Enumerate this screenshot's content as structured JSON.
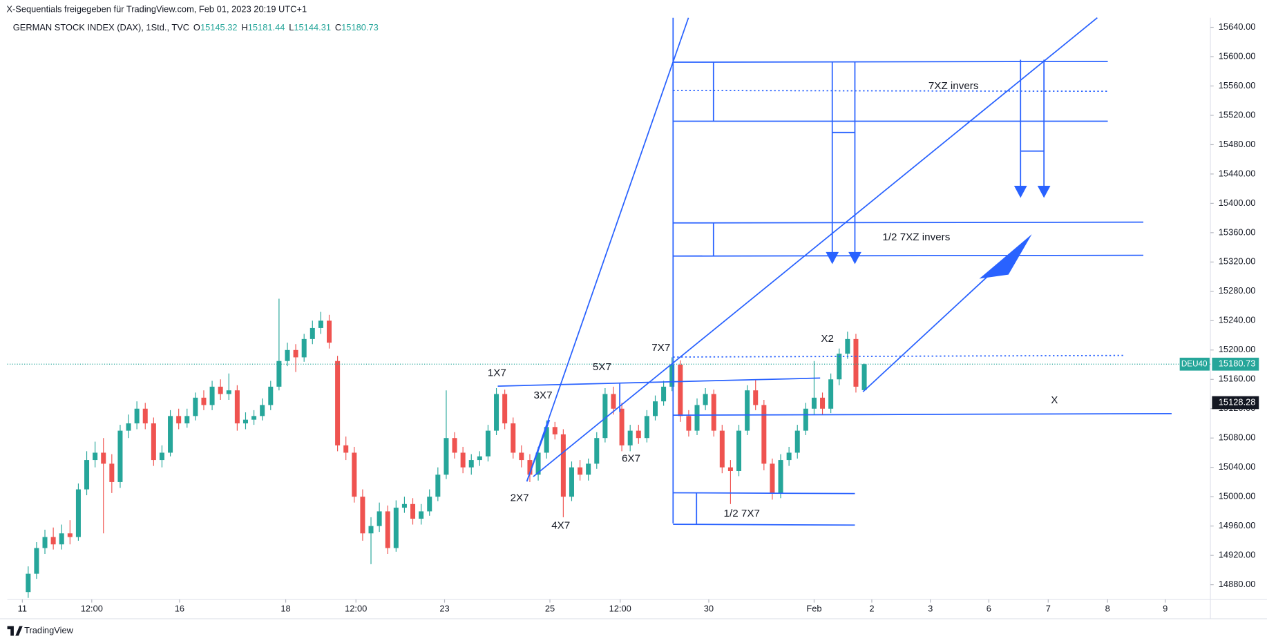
{
  "header": {
    "credit": "X-Sequentials freigegeben für TradingView.com, Feb 01, 2023 20:19 UTC+1",
    "brand": "TradingView"
  },
  "chart_data": {
    "type": "candlestick",
    "symbol": "GERMAN STOCK INDEX (DAX), 1Std., TVC",
    "ohlc_keys": [
      "O",
      "H",
      "L",
      "C"
    ],
    "ticker": "DEU40",
    "marker_price": 15128.28,
    "up_color": "#26a69a",
    "down_color": "#ef5350",
    "grid": false,
    "xlim": [
      -2.5,
      141.4
    ],
    "xticks": [
      {
        "value": -0.7,
        "label": "11"
      },
      {
        "value": 7.6,
        "label": "12:00"
      },
      {
        "value": 18.1,
        "label": "16"
      },
      {
        "value": 30.8,
        "label": "18"
      },
      {
        "value": 39.2,
        "label": "12:00"
      },
      {
        "value": 49.8,
        "label": "23"
      },
      {
        "value": 62.4,
        "label": "25"
      },
      {
        "value": 70.8,
        "label": "12:00"
      },
      {
        "value": 81.4,
        "label": "30"
      },
      {
        "value": 94.0,
        "label": "Feb"
      },
      {
        "value": 100.9,
        "label": "2"
      },
      {
        "value": 107.9,
        "label": "3"
      },
      {
        "value": 114.9,
        "label": "6"
      },
      {
        "value": 122.0,
        "label": "7"
      },
      {
        "value": 129.1,
        "label": "8"
      },
      {
        "value": 136.0,
        "label": "9"
      }
    ],
    "ylim": [
      14860,
      15653
    ],
    "yticks": [
      {
        "value": 14880,
        "label": "14880.00"
      },
      {
        "value": 14920,
        "label": "14920.00"
      },
      {
        "value": 14960,
        "label": "14960.00"
      },
      {
        "value": 15000,
        "label": "15000.00"
      },
      {
        "value": 15040,
        "label": "15040.00"
      },
      {
        "value": 15080,
        "label": "15080.00"
      },
      {
        "value": 15120,
        "label": "15120.00"
      },
      {
        "value": 15160,
        "label": "15160.00"
      },
      {
        "value": 15200,
        "label": "15200.00"
      },
      {
        "value": 15240,
        "label": "15240.00"
      },
      {
        "value": 15280,
        "label": "15280.00"
      },
      {
        "value": 15320,
        "label": "15320.00"
      },
      {
        "value": 15360,
        "label": "15360.00"
      },
      {
        "value": 15400,
        "label": "15400.00"
      },
      {
        "value": 15440,
        "label": "15440.00"
      },
      {
        "value": 15480,
        "label": "15480.00"
      },
      {
        "value": 15520,
        "label": "15520.00"
      },
      {
        "value": 15560,
        "label": "15560.00"
      },
      {
        "value": 15600,
        "label": "15600.00"
      },
      {
        "value": 15640,
        "label": "15640.00"
      }
    ],
    "annotations": [
      "1X7",
      "2X7",
      "3X7",
      "4X7",
      "5X7",
      "6X7",
      "7X7",
      "X2",
      "X",
      "7XZ invers",
      "1/2 7XZ invers",
      "1/2 7X7"
    ],
    "candles": [
      [
        14870,
        14905,
        14862,
        14895
      ],
      [
        14895,
        14938,
        14888,
        14930
      ],
      [
        14930,
        14955,
        14922,
        14945
      ],
      [
        14945,
        14958,
        14928,
        14935
      ],
      [
        14935,
        14962,
        14928,
        14950
      ],
      [
        14950,
        14968,
        14935,
        14945
      ],
      [
        14945,
        15018,
        14940,
        15010
      ],
      [
        15010,
        15062,
        15002,
        15050
      ],
      [
        15050,
        15075,
        15040,
        15060
      ],
      [
        15060,
        15080,
        14950,
        15045
      ],
      [
        15045,
        15058,
        15005,
        15020
      ],
      [
        15020,
        15098,
        15012,
        15090
      ],
      [
        15090,
        15112,
        15080,
        15100
      ],
      [
        15100,
        15130,
        15092,
        15120
      ],
      [
        15120,
        15128,
        15092,
        15100
      ],
      [
        15100,
        15108,
        15042,
        15050
      ],
      [
        15050,
        15070,
        15040,
        15060
      ],
      [
        15060,
        15118,
        15055,
        15110
      ],
      [
        15110,
        15120,
        15092,
        15100
      ],
      [
        15100,
        15120,
        15094,
        15110
      ],
      [
        15110,
        15142,
        15104,
        15135
      ],
      [
        15135,
        15145,
        15118,
        15125
      ],
      [
        15125,
        15158,
        15118,
        15150
      ],
      [
        15150,
        15160,
        15132,
        15140
      ],
      [
        15140,
        15168,
        15132,
        15145
      ],
      [
        15145,
        15152,
        15090,
        15100
      ],
      [
        15100,
        15115,
        15092,
        15105
      ],
      [
        15105,
        15118,
        15098,
        15110
      ],
      [
        15110,
        15134,
        15104,
        15125
      ],
      [
        15125,
        15158,
        15118,
        15150
      ],
      [
        15150,
        15270,
        15145,
        15185
      ],
      [
        15185,
        15210,
        15178,
        15200
      ],
      [
        15200,
        15208,
        15170,
        15190
      ],
      [
        15190,
        15222,
        15184,
        15215
      ],
      [
        15215,
        15240,
        15208,
        15230
      ],
      [
        15230,
        15252,
        15222,
        15240
      ],
      [
        15240,
        15248,
        15202,
        15210
      ],
      [
        15185,
        15192,
        15062,
        15070
      ],
      [
        15070,
        15082,
        15050,
        15060
      ],
      [
        15060,
        15068,
        14992,
        15000
      ],
      [
        15000,
        15010,
        14940,
        14950
      ],
      [
        14950,
        14972,
        14908,
        14960
      ],
      [
        14960,
        14992,
        14952,
        14980
      ],
      [
        14980,
        14988,
        14922,
        14930
      ],
      [
        14930,
        14995,
        14925,
        14985
      ],
      [
        14985,
        15000,
        14978,
        14990
      ],
      [
        14990,
        14998,
        14962,
        14970
      ],
      [
        14970,
        14990,
        14962,
        14980
      ],
      [
        14980,
        15010,
        14974,
        15000
      ],
      [
        15000,
        15040,
        14994,
        15030
      ],
      [
        15030,
        15145,
        15024,
        15080
      ],
      [
        15080,
        15088,
        15052,
        15060
      ],
      [
        15060,
        15068,
        15032,
        15040
      ],
      [
        15040,
        15058,
        15030,
        15050
      ],
      [
        15050,
        15062,
        15042,
        15055
      ],
      [
        15055,
        15098,
        15048,
        15090
      ],
      [
        15090,
        15148,
        15084,
        15140
      ],
      [
        15140,
        15146,
        15092,
        15100
      ],
      [
        15100,
        15108,
        15052,
        15060
      ],
      [
        15060,
        15070,
        15040,
        15050
      ],
      [
        15050,
        15058,
        15020,
        15030
      ],
      [
        15030,
        15068,
        15022,
        15060
      ],
      [
        15060,
        15104,
        15052,
        15095
      ],
      [
        15095,
        15102,
        15078,
        15085
      ],
      [
        15085,
        15092,
        14972,
        15000
      ],
      [
        15000,
        15048,
        14994,
        15040
      ],
      [
        15040,
        15050,
        15022,
        15030
      ],
      [
        15030,
        15052,
        15022,
        15045
      ],
      [
        15045,
        15088,
        15038,
        15080
      ],
      [
        15080,
        15148,
        15074,
        15140
      ],
      [
        15140,
        15150,
        15112,
        15120
      ],
      [
        15120,
        15128,
        15062,
        15070
      ],
      [
        15070,
        15098,
        15062,
        15090
      ],
      [
        15090,
        15098,
        15072,
        15080
      ],
      [
        15080,
        15118,
        15074,
        15110
      ],
      [
        15110,
        15138,
        15104,
        15130
      ],
      [
        15130,
        15158,
        15124,
        15150
      ],
      [
        15150,
        15190,
        15144,
        15180
      ],
      [
        15180,
        15186,
        15102,
        15110
      ],
      [
        15110,
        15118,
        15082,
        15090
      ],
      [
        15090,
        15134,
        15084,
        15125
      ],
      [
        15125,
        15148,
        15118,
        15140
      ],
      [
        15140,
        15146,
        15082,
        15090
      ],
      [
        15090,
        15098,
        15032,
        15040
      ],
      [
        15040,
        15050,
        14990,
        15035
      ],
      [
        15035,
        15098,
        15028,
        15090
      ],
      [
        15090,
        15152,
        15084,
        15145
      ],
      [
        15145,
        15160,
        15118,
        15125
      ],
      [
        15125,
        15132,
        15036,
        15045
      ],
      [
        15045,
        15052,
        14996,
        15005
      ],
      [
        15005,
        15058,
        14998,
        15050
      ],
      [
        15050,
        15068,
        15042,
        15060
      ],
      [
        15060,
        15098,
        15052,
        15090
      ],
      [
        15090,
        15128,
        15084,
        15120
      ],
      [
        15120,
        15185,
        15112,
        15135
      ],
      [
        15135,
        15142,
        15112,
        15120
      ],
      [
        15120,
        15168,
        15114,
        15160
      ],
      [
        15160,
        15202,
        15152,
        15195
      ],
      [
        15195,
        15225,
        15188,
        15215
      ],
      [
        15215,
        15222,
        15142,
        15150
      ],
      [
        15145.32,
        15181.44,
        15144.31,
        15180.73
      ]
    ]
  }
}
